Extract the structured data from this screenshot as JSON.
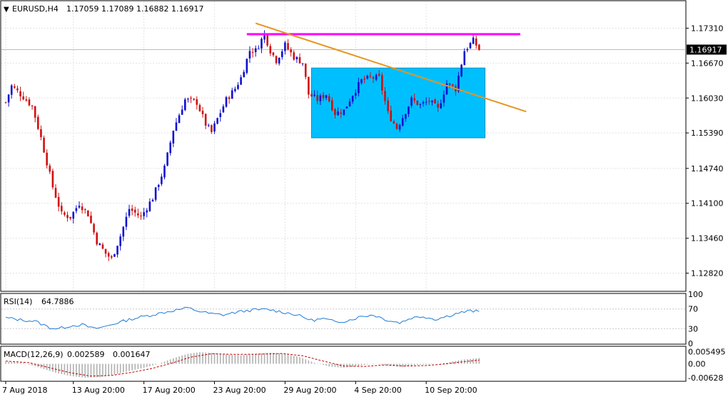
{
  "header": {
    "arrow": "▼",
    "symbol": "EURUSD,H4",
    "ohlc": "1.17059 1.17089 1.16882 1.16917"
  },
  "colors": {
    "bull": "#1010d0",
    "bear": "#d01010",
    "zone": "#00bfff",
    "resistance": "#ff00ff",
    "trendline": "#e69520",
    "rsi": "#1e7bd6",
    "macd_hist": "#b0b0b0",
    "macd_signal": "#c00000",
    "grid": "#e3e3e3"
  },
  "chart_data": [
    {
      "type": "candlestick",
      "ylim": [
        1.125,
        1.178
      ],
      "price_ticks": [
        "1.17310",
        "1.16670",
        "1.16030",
        "1.15390",
        "1.14740",
        "1.14100",
        "1.13460",
        "1.12820"
      ],
      "current_price": "1.16917",
      "x_labels": [
        "7 Aug 2018",
        "13 Aug 20:00",
        "17 Aug 20:00",
        "23 Aug 20:00",
        "29 Aug 20:00",
        "4 Sep 20:00",
        "10 Sep 20:00"
      ],
      "close_anchors": [
        [
          0,
          1.1595
        ],
        [
          2,
          1.1625
        ],
        [
          6,
          1.1605
        ],
        [
          9,
          1.1588
        ],
        [
          12,
          1.153
        ],
        [
          16,
          1.144
        ],
        [
          19,
          1.139
        ],
        [
          22,
          1.1385
        ],
        [
          25,
          1.141
        ],
        [
          28,
          1.139
        ],
        [
          31,
          1.134
        ],
        [
          34,
          1.1318
        ],
        [
          36,
          1.1308
        ],
        [
          39,
          1.135
        ],
        [
          42,
          1.14
        ],
        [
          46,
          1.1385
        ],
        [
          50,
          1.142
        ],
        [
          54,
          1.1475
        ],
        [
          57,
          1.1545
        ],
        [
          61,
          1.16
        ],
        [
          65,
          1.1595
        ],
        [
          68,
          1.1555
        ],
        [
          70,
          1.154
        ],
        [
          72,
          1.1565
        ],
        [
          75,
          1.16
        ],
        [
          78,
          1.162
        ],
        [
          80,
          1.164
        ],
        [
          83,
          1.169
        ],
        [
          85,
          1.169
        ],
        [
          88,
          1.172
        ],
        [
          90,
          1.169
        ],
        [
          92,
          1.1672
        ],
        [
          95,
          1.17
        ],
        [
          98,
          1.1678
        ],
        [
          101,
          1.1668
        ],
        [
          103,
          1.161
        ],
        [
          106,
          1.16
        ],
        [
          109,
          1.161
        ],
        [
          112,
          1.1575
        ],
        [
          115,
          1.158
        ],
        [
          118,
          1.161
        ],
        [
          121,
          1.1635
        ],
        [
          124,
          1.164
        ],
        [
          127,
          1.164
        ],
        [
          130,
          1.1575
        ],
        [
          133,
          1.1548
        ],
        [
          135,
          1.1568
        ],
        [
          138,
          1.16
        ],
        [
          141,
          1.159
        ],
        [
          144,
          1.1598
        ],
        [
          147,
          1.1582
        ],
        [
          150,
          1.163
        ],
        [
          153,
          1.162
        ],
        [
          156,
          1.169
        ],
        [
          159,
          1.1708
        ],
        [
          161,
          1.1692
        ]
      ],
      "support_zone": {
        "from_index": 104,
        "to_index": 163,
        "low": 1.153,
        "high": 1.1658
      },
      "resistance_line": {
        "from_index": 82,
        "to_index": 175,
        "level": 1.172
      },
      "trendline": {
        "from": [
          85,
          1.174
        ],
        "to": [
          177,
          1.1578
        ]
      }
    },
    {
      "type": "line",
      "name": "RSI(14)",
      "value_label": "64.7886",
      "ticks": [
        "100",
        "70",
        "30",
        "0"
      ],
      "ylim": [
        0,
        100
      ],
      "anchors": [
        [
          0,
          52
        ],
        [
          5,
          48
        ],
        [
          10,
          45
        ],
        [
          15,
          32
        ],
        [
          18,
          30
        ],
        [
          22,
          36
        ],
        [
          26,
          38
        ],
        [
          30,
          30
        ],
        [
          33,
          33
        ],
        [
          38,
          42
        ],
        [
          43,
          50
        ],
        [
          48,
          56
        ],
        [
          53,
          62
        ],
        [
          58,
          68
        ],
        [
          62,
          72
        ],
        [
          66,
          65
        ],
        [
          70,
          60
        ],
        [
          74,
          58
        ],
        [
          79,
          64
        ],
        [
          84,
          68
        ],
        [
          89,
          69
        ],
        [
          94,
          64
        ],
        [
          99,
          58
        ],
        [
          104,
          47
        ],
        [
          108,
          50
        ],
        [
          112,
          44
        ],
        [
          116,
          46
        ],
        [
          121,
          55
        ],
        [
          125,
          58
        ],
        [
          130,
          47
        ],
        [
          134,
          42
        ],
        [
          138,
          52
        ],
        [
          142,
          55
        ],
        [
          146,
          49
        ],
        [
          150,
          55
        ],
        [
          154,
          62
        ],
        [
          158,
          66
        ],
        [
          161,
          64.79
        ]
      ]
    },
    {
      "type": "bar",
      "name": "MACD(12,26,9)",
      "macd_label": "0.002589",
      "signal_label": "0.001647",
      "ticks": [
        "0.005495",
        "0.00",
        "-0.00628"
      ],
      "ylim": [
        -0.0075,
        0.0075
      ],
      "macd_anchors": [
        [
          0,
          0.001
        ],
        [
          6,
          0.0004
        ],
        [
          11,
          -0.0015
        ],
        [
          17,
          -0.004
        ],
        [
          22,
          -0.0055
        ],
        [
          27,
          -0.0062
        ],
        [
          32,
          -0.006
        ],
        [
          37,
          -0.0048
        ],
        [
          42,
          -0.0032
        ],
        [
          47,
          -0.0018
        ],
        [
          52,
          0.0
        ],
        [
          57,
          0.0025
        ],
        [
          62,
          0.0045
        ],
        [
          66,
          0.0052
        ],
        [
          71,
          0.0048
        ],
        [
          76,
          0.004
        ],
        [
          80,
          0.0038
        ],
        [
          85,
          0.0045
        ],
        [
          90,
          0.005
        ],
        [
          95,
          0.0045
        ],
        [
          100,
          0.003
        ],
        [
          105,
          0.0005
        ],
        [
          110,
          -0.0012
        ],
        [
          115,
          -0.0018
        ],
        [
          120,
          -0.001
        ],
        [
          125,
          0.0002
        ],
        [
          130,
          -0.0008
        ],
        [
          135,
          -0.0015
        ],
        [
          140,
          -0.0005
        ],
        [
          145,
          -0.0002
        ],
        [
          150,
          0.0005
        ],
        [
          155,
          0.0018
        ],
        [
          161,
          0.002589
        ]
      ],
      "signal_anchors": [
        [
          0,
          0.0012
        ],
        [
          8,
          0.0005
        ],
        [
          15,
          -0.0018
        ],
        [
          22,
          -0.004
        ],
        [
          29,
          -0.0055
        ],
        [
          36,
          -0.0052
        ],
        [
          43,
          -0.0038
        ],
        [
          50,
          -0.002
        ],
        [
          57,
          0.0005
        ],
        [
          63,
          0.003
        ],
        [
          70,
          0.0045
        ],
        [
          78,
          0.0042
        ],
        [
          86,
          0.0043
        ],
        [
          94,
          0.0046
        ],
        [
          101,
          0.0036
        ],
        [
          108,
          0.0012
        ],
        [
          115,
          -0.001
        ],
        [
          122,
          -0.0012
        ],
        [
          129,
          -0.0005
        ],
        [
          136,
          -0.001
        ],
        [
          143,
          -0.0008
        ],
        [
          150,
          0.0
        ],
        [
          156,
          0.001
        ],
        [
          161,
          0.001647
        ]
      ]
    }
  ]
}
